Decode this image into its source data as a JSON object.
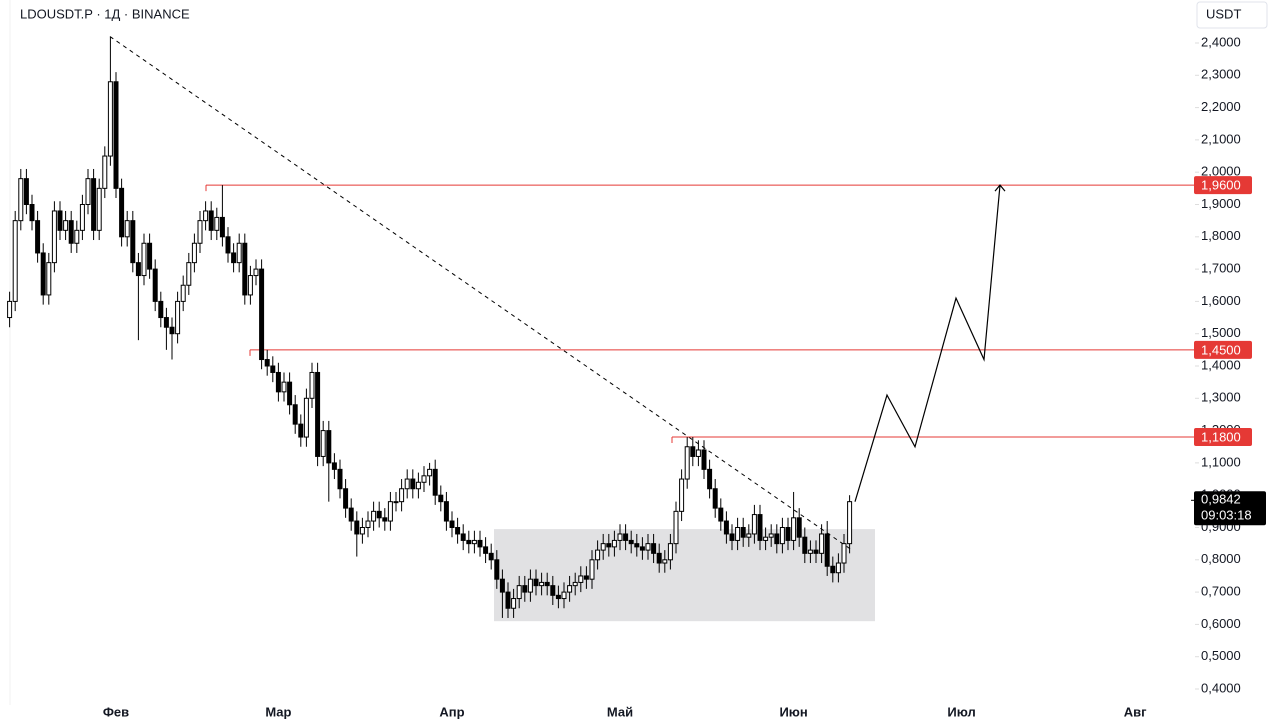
{
  "chart_data": {
    "type": "candlestick",
    "title": "LDOUSDT.P · 1Д · BINANCE",
    "currency": "USDT",
    "categories": [
      null,
      null,
      null,
      null,
      null,
      null,
      null,
      null,
      null,
      null,
      null,
      null,
      null,
      null,
      null,
      null,
      null,
      null,
      null,
      "Фев",
      null,
      null,
      null,
      null,
      null,
      null,
      null,
      null,
      null,
      null,
      null,
      null,
      null,
      null,
      null,
      null,
      null,
      null,
      null,
      null,
      null,
      null,
      null,
      null,
      null,
      null,
      null,
      null,
      "Мар",
      null,
      null,
      null,
      null,
      null,
      null,
      null,
      null,
      null,
      null,
      null,
      null,
      null,
      null,
      null,
      null,
      null,
      null,
      null,
      null,
      null,
      null,
      null,
      null,
      null,
      null,
      null,
      null,
      null,
      null,
      "Апр",
      null,
      null,
      null,
      null,
      null,
      null,
      null,
      null,
      null,
      null,
      null,
      null,
      null,
      null,
      null,
      null,
      null,
      null,
      null,
      null,
      null,
      null,
      null,
      null,
      null,
      null,
      null,
      null,
      null,
      "Май",
      null,
      null,
      null,
      null,
      null,
      null,
      null,
      null,
      null,
      null,
      null,
      null,
      null,
      null,
      null,
      null,
      null,
      null,
      null,
      null,
      null,
      null,
      null,
      null,
      null,
      null,
      null,
      null,
      null,
      null,
      "Июн",
      null,
      null,
      null,
      null,
      null,
      null,
      null,
      null,
      null,
      null,
      null,
      null,
      null,
      null,
      null,
      null,
      null,
      null,
      null,
      null,
      null,
      null,
      null,
      null,
      null,
      null,
      null,
      null,
      null,
      "Июл",
      null,
      null,
      null,
      null,
      null,
      null,
      null,
      null,
      null,
      null,
      null,
      null,
      null,
      null,
      null,
      null,
      null,
      null,
      null,
      null,
      null,
      null,
      null,
      null,
      null,
      null,
      null,
      null,
      null,
      null,
      "Авг"
    ],
    "open": [
      1.55,
      1.6,
      1.85,
      1.98,
      1.9,
      1.85,
      1.75,
      1.62,
      1.72,
      1.88,
      1.82,
      1.85,
      1.78,
      1.82,
      1.9,
      1.98,
      1.82,
      1.95,
      2.05,
      2.28,
      1.95,
      1.8,
      1.85,
      1.72,
      1.68,
      1.78,
      1.7,
      1.6,
      1.55,
      1.52,
      1.5,
      1.6,
      1.65,
      1.72,
      1.78,
      1.85,
      1.88,
      1.82,
      1.86,
      1.8,
      1.75,
      1.72,
      1.78,
      1.62,
      1.68,
      1.7,
      1.42,
      1.4,
      1.38,
      1.32,
      1.35,
      1.28,
      1.22,
      1.18,
      1.3,
      1.38,
      1.12,
      1.2,
      1.1,
      1.08,
      1.02,
      0.96,
      0.92,
      0.88,
      0.9,
      0.92,
      0.95,
      0.93,
      0.92,
      0.98,
      0.98,
      1.02,
      1.05,
      1.02,
      1.04,
      1.06,
      1.08,
      1.0,
      0.98,
      0.92,
      0.9,
      0.88,
      0.86,
      0.85,
      0.86,
      0.84,
      0.82,
      0.8,
      0.74,
      0.7,
      0.65,
      0.68,
      0.72,
      0.7,
      0.74,
      0.72,
      0.73,
      0.72,
      0.69,
      0.68,
      0.7,
      0.72,
      0.73,
      0.75,
      0.74,
      0.8,
      0.83,
      0.85,
      0.84,
      0.86,
      0.88,
      0.86,
      0.85,
      0.84,
      0.83,
      0.85,
      0.82,
      0.79,
      0.8,
      0.85,
      0.95,
      1.05,
      1.15,
      1.12,
      1.14,
      1.08,
      1.02,
      0.96,
      0.92,
      0.88,
      0.86,
      0.9,
      0.87,
      0.88,
      0.94,
      0.86,
      0.87,
      0.88,
      0.85,
      0.9,
      0.86,
      0.93,
      0.87,
      0.82,
      0.83,
      0.82,
      0.88,
      0.78,
      0.76,
      0.79,
      0.85,
      null,
      null,
      null,
      null,
      null,
      null,
      null,
      null,
      null,
      null,
      null,
      null,
      null,
      null,
      null,
      null,
      null,
      null,
      null,
      null,
      null,
      null,
      null,
      null,
      null,
      null,
      null,
      null,
      null,
      null,
      null,
      null,
      null,
      null,
      null,
      null,
      null,
      null,
      null,
      null,
      null,
      null,
      null,
      null,
      null,
      null,
      null,
      null,
      null,
      null,
      null
    ],
    "high": [
      1.63,
      1.88,
      2.01,
      2.01,
      1.93,
      1.88,
      1.78,
      1.75,
      1.91,
      1.91,
      1.88,
      1.88,
      1.85,
      1.93,
      2.01,
      2.01,
      1.98,
      2.08,
      2.42,
      2.31,
      1.98,
      1.88,
      1.88,
      1.75,
      1.81,
      1.81,
      1.73,
      1.63,
      1.58,
      1.55,
      1.63,
      1.68,
      1.75,
      1.81,
      1.88,
      1.91,
      1.91,
      1.89,
      1.96,
      1.83,
      1.78,
      1.81,
      1.81,
      1.71,
      1.73,
      1.73,
      1.45,
      1.43,
      1.41,
      1.38,
      1.38,
      1.31,
      1.25,
      1.33,
      1.41,
      1.41,
      1.23,
      1.23,
      1.13,
      1.11,
      1.05,
      0.99,
      0.95,
      0.93,
      0.95,
      0.98,
      0.98,
      0.96,
      1.01,
      1.01,
      1.05,
      1.08,
      1.08,
      1.07,
      1.09,
      1.1,
      1.11,
      1.03,
      1.01,
      0.95,
      0.93,
      0.91,
      0.89,
      0.89,
      0.89,
      0.87,
      0.85,
      0.83,
      0.77,
      0.73,
      0.71,
      0.75,
      0.75,
      0.77,
      0.77,
      0.76,
      0.76,
      0.75,
      0.72,
      0.73,
      0.75,
      0.76,
      0.78,
      0.78,
      0.83,
      0.86,
      0.88,
      0.88,
      0.89,
      0.91,
      0.91,
      0.89,
      0.88,
      0.87,
      0.88,
      0.88,
      0.85,
      0.83,
      0.88,
      0.98,
      1.08,
      1.18,
      1.18,
      1.17,
      1.17,
      1.11,
      1.05,
      0.99,
      0.95,
      0.91,
      0.93,
      0.93,
      0.91,
      0.97,
      0.97,
      0.9,
      0.91,
      0.91,
      0.93,
      0.93,
      1.01,
      0.96,
      0.9,
      0.86,
      0.86,
      0.91,
      0.92,
      0.81,
      0.82,
      0.88,
      1.0,
      null,
      null,
      null,
      null,
      null,
      null,
      null,
      null,
      null,
      null,
      null,
      null,
      null,
      null,
      null,
      null,
      null,
      null,
      null,
      null,
      null,
      null,
      null,
      null,
      null,
      null,
      null,
      null,
      null,
      null,
      null,
      null,
      null,
      null,
      null,
      null,
      null,
      null,
      null,
      null,
      null,
      null,
      null,
      null,
      null,
      null,
      null,
      null,
      null,
      null,
      null
    ],
    "low": [
      1.52,
      1.57,
      1.82,
      1.87,
      1.82,
      1.72,
      1.59,
      1.59,
      1.69,
      1.79,
      1.79,
      1.75,
      1.75,
      1.79,
      1.87,
      1.79,
      1.79,
      1.92,
      2.02,
      1.92,
      1.77,
      1.77,
      1.69,
      1.48,
      1.65,
      1.67,
      1.57,
      1.52,
      1.45,
      1.42,
      1.47,
      1.57,
      1.62,
      1.69,
      1.75,
      1.82,
      1.79,
      1.79,
      1.77,
      1.72,
      1.69,
      1.69,
      1.59,
      1.59,
      1.65,
      1.39,
      1.37,
      1.35,
      1.29,
      1.29,
      1.25,
      1.19,
      1.15,
      1.15,
      1.27,
      1.09,
      1.09,
      0.98,
      1.05,
      0.99,
      0.93,
      0.89,
      0.81,
      0.85,
      0.87,
      0.89,
      0.9,
      0.89,
      0.89,
      0.95,
      0.95,
      0.99,
      0.99,
      0.99,
      1.01,
      1.03,
      0.97,
      0.95,
      0.89,
      0.87,
      0.85,
      0.83,
      0.82,
      0.82,
      0.81,
      0.79,
      0.77,
      0.71,
      0.62,
      0.62,
      0.62,
      0.65,
      0.67,
      0.67,
      0.69,
      0.69,
      0.69,
      0.66,
      0.65,
      0.65,
      0.67,
      0.69,
      0.7,
      0.71,
      0.71,
      0.77,
      0.8,
      0.81,
      0.81,
      0.83,
      0.83,
      0.82,
      0.81,
      0.8,
      0.8,
      0.79,
      0.76,
      0.76,
      0.77,
      0.82,
      0.92,
      1.02,
      1.09,
      1.09,
      1.05,
      0.99,
      0.93,
      0.89,
      0.85,
      0.83,
      0.83,
      0.84,
      0.84,
      0.85,
      0.83,
      0.83,
      0.84,
      0.82,
      0.82,
      0.83,
      0.83,
      0.84,
      0.79,
      0.79,
      0.79,
      0.79,
      0.75,
      0.73,
      0.73,
      0.76,
      0.82,
      null,
      null,
      null,
      null,
      null,
      null,
      null,
      null,
      null,
      null,
      null,
      null,
      null,
      null,
      null,
      null,
      null,
      null,
      null,
      null,
      null,
      null,
      null,
      null,
      null,
      null,
      null,
      null,
      null,
      null,
      null,
      null,
      null,
      null,
      null,
      null,
      null,
      null,
      null,
      null,
      null,
      null,
      null,
      null,
      null,
      null,
      null,
      null,
      null,
      null,
      null
    ],
    "close": [
      1.6,
      1.85,
      1.98,
      1.9,
      1.85,
      1.75,
      1.62,
      1.72,
      1.88,
      1.82,
      1.85,
      1.78,
      1.82,
      1.9,
      1.98,
      1.82,
      1.95,
      2.05,
      2.28,
      1.95,
      1.8,
      1.85,
      1.72,
      1.68,
      1.78,
      1.7,
      1.6,
      1.55,
      1.52,
      1.5,
      1.6,
      1.65,
      1.72,
      1.78,
      1.85,
      1.88,
      1.82,
      1.86,
      1.8,
      1.75,
      1.72,
      1.78,
      1.62,
      1.68,
      1.7,
      1.42,
      1.4,
      1.38,
      1.32,
      1.35,
      1.28,
      1.22,
      1.18,
      1.3,
      1.38,
      1.12,
      1.2,
      1.1,
      1.08,
      1.02,
      0.96,
      0.92,
      0.88,
      0.9,
      0.92,
      0.95,
      0.93,
      0.92,
      0.98,
      0.98,
      1.02,
      1.05,
      1.02,
      1.04,
      1.06,
      1.08,
      1.0,
      0.98,
      0.92,
      0.9,
      0.88,
      0.86,
      0.85,
      0.86,
      0.84,
      0.82,
      0.8,
      0.74,
      0.7,
      0.65,
      0.68,
      0.72,
      0.7,
      0.74,
      0.72,
      0.73,
      0.72,
      0.69,
      0.68,
      0.7,
      0.72,
      0.73,
      0.75,
      0.74,
      0.8,
      0.83,
      0.85,
      0.84,
      0.86,
      0.88,
      0.86,
      0.85,
      0.84,
      0.83,
      0.85,
      0.82,
      0.79,
      0.8,
      0.85,
      0.95,
      1.05,
      1.15,
      1.12,
      1.14,
      1.08,
      1.02,
      0.96,
      0.92,
      0.88,
      0.86,
      0.9,
      0.87,
      0.88,
      0.94,
      0.86,
      0.87,
      0.88,
      0.85,
      0.9,
      0.86,
      0.93,
      0.87,
      0.82,
      0.83,
      0.82,
      0.88,
      0.78,
      0.76,
      0.79,
      0.85,
      0.98,
      null,
      null,
      null,
      null,
      null,
      null,
      null,
      null,
      null,
      null,
      null,
      null,
      null,
      null,
      null,
      null,
      null,
      null,
      null,
      null,
      null,
      null,
      null,
      null,
      null,
      null,
      null,
      null,
      null,
      null,
      null,
      null,
      null,
      null,
      null,
      null,
      null,
      null,
      null,
      null,
      null,
      null,
      null,
      null,
      null,
      null,
      null,
      null,
      null,
      null,
      null
    ],
    "ylim": [
      0.4,
      2.4
    ],
    "yticks": [
      {
        "value": 0.4,
        "label": "0,4000"
      },
      {
        "value": 0.5,
        "label": "0,5000"
      },
      {
        "value": 0.6,
        "label": "0,6000"
      },
      {
        "value": 0.7,
        "label": "0,7000"
      },
      {
        "value": 0.8,
        "label": "0,8000"
      },
      {
        "value": 0.9,
        "label": "0,9000"
      },
      {
        "value": 1.0,
        "label": "1,0000"
      },
      {
        "value": 1.1,
        "label": "1,1000"
      },
      {
        "value": 1.2,
        "label": "1,2000"
      },
      {
        "value": 1.3,
        "label": "1,3000"
      },
      {
        "value": 1.4,
        "label": "1,4000"
      },
      {
        "value": 1.5,
        "label": "1,5000"
      },
      {
        "value": 1.6,
        "label": "1,6000"
      },
      {
        "value": 1.7,
        "label": "1,7000"
      },
      {
        "value": 1.8,
        "label": "1,8000"
      },
      {
        "value": 1.9,
        "label": "1,9000"
      },
      {
        "value": 2.0,
        "label": "2,0000"
      },
      {
        "value": 2.1,
        "label": "2,1000"
      },
      {
        "value": 2.2,
        "label": "2,2000"
      },
      {
        "value": 2.3,
        "label": "2,3000"
      },
      {
        "value": 2.4,
        "label": "2,4000"
      }
    ],
    "levels": [
      {
        "value": 1.96,
        "label": "1,9600"
      },
      {
        "value": 1.45,
        "label": "1,4500"
      },
      {
        "value": 1.18,
        "label": "1,1800"
      }
    ],
    "level_color": "#e53935",
    "zone": [
      0.61,
      0.895
    ],
    "trendline": [
      2.42,
      0.83
    ],
    "projection": [
      0.98,
      1.31,
      1.15,
      1.61,
      1.42,
      1.96
    ],
    "last_price": {
      "value": 0.9842,
      "label": "0,9842"
    },
    "countdown": "09:03:18"
  }
}
